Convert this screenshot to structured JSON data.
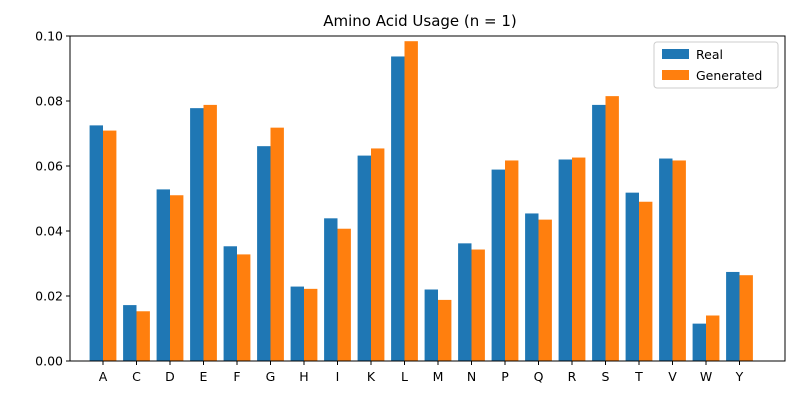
{
  "chart_data": {
    "type": "bar",
    "title": "Amino Acid Usage (n = 1)",
    "xlabel": "",
    "ylabel": "",
    "categories": [
      "A",
      "C",
      "D",
      "E",
      "F",
      "G",
      "H",
      "I",
      "K",
      "L",
      "M",
      "N",
      "P",
      "Q",
      "R",
      "S",
      "T",
      "V",
      "W",
      "Y"
    ],
    "series": [
      {
        "name": "Real",
        "color": "#1f77b4",
        "values": [
          0.0725,
          0.0172,
          0.0528,
          0.0778,
          0.0353,
          0.0661,
          0.0229,
          0.0439,
          0.0632,
          0.0937,
          0.022,
          0.0362,
          0.0589,
          0.0454,
          0.062,
          0.0788,
          0.0518,
          0.0623,
          0.0115,
          0.0274
        ]
      },
      {
        "name": "Generated",
        "color": "#ff7f0e",
        "values": [
          0.0709,
          0.0153,
          0.051,
          0.0788,
          0.0328,
          0.0718,
          0.0222,
          0.0407,
          0.0654,
          0.0984,
          0.0188,
          0.0343,
          0.0617,
          0.0435,
          0.0626,
          0.0815,
          0.049,
          0.0617,
          0.014,
          0.0264
        ]
      }
    ],
    "yticks": [
      0.0,
      0.02,
      0.04,
      0.06,
      0.08,
      0.1
    ],
    "ytick_labels": [
      "0.00",
      "0.02",
      "0.04",
      "0.06",
      "0.08",
      "0.10"
    ],
    "ylim": [
      0,
      0.1
    ],
    "grid": false,
    "legend_position": "top-right"
  }
}
